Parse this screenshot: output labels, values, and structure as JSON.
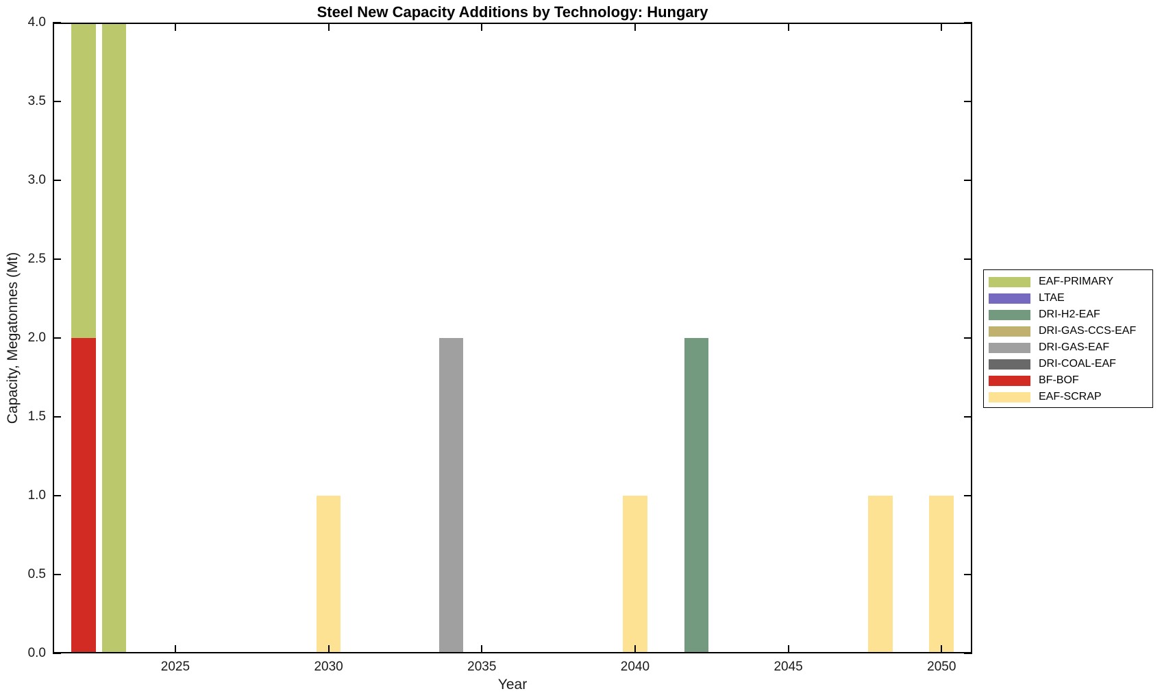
{
  "figure": {
    "title": "Steel New Capacity Additions by Technology: Hungary",
    "x_axis_label": "Year",
    "y_axis_label": "Capacity, Megatonnes (Mt)"
  },
  "chart_data": {
    "type": "bar",
    "stacked": true,
    "title": "Steel New Capacity Additions by Technology: Hungary",
    "xlabel": "Year",
    "ylabel": "Capacity, Megatonnes (Mt)",
    "xlim": [
      2021,
      2051
    ],
    "ylim": [
      0.0,
      4.0
    ],
    "xticks": [
      2025,
      2030,
      2035,
      2040,
      2045,
      2050
    ],
    "yticks": [
      0.0,
      0.5,
      1.0,
      1.5,
      2.0,
      2.5,
      3.0,
      3.5,
      4.0
    ],
    "ytick_labels": [
      "0.0",
      "0.5",
      "1.0",
      "1.5",
      "2.0",
      "2.5",
      "3.0",
      "3.5",
      "4.0"
    ],
    "bar_width_years": 0.8,
    "grid": false,
    "legend_position": "outside-right",
    "series": [
      {
        "name": "EAF-PRIMARY",
        "color": "#bcc86c",
        "points": [
          {
            "x": 2022,
            "y": 2.0
          },
          {
            "x": 2023,
            "y": 4.0
          }
        ]
      },
      {
        "name": "LTAE",
        "color": "#7569c0",
        "points": []
      },
      {
        "name": "DRI-H2-EAF",
        "color": "#739a7e",
        "points": [
          {
            "x": 2042,
            "y": 2.0
          }
        ]
      },
      {
        "name": "DRI-GAS-CCS-EAF",
        "color": "#c0b26e",
        "points": []
      },
      {
        "name": "DRI-GAS-EAF",
        "color": "#a0a0a0",
        "points": [
          {
            "x": 2034,
            "y": 2.0
          }
        ]
      },
      {
        "name": "DRI-COAL-EAF",
        "color": "#696969",
        "points": []
      },
      {
        "name": "BF-BOF",
        "color": "#d22b24",
        "points": [
          {
            "x": 2022,
            "y": 2.0
          }
        ]
      },
      {
        "name": "EAF-SCRAP",
        "color": "#fde294",
        "points": [
          {
            "x": 2030,
            "y": 1.0
          },
          {
            "x": 2040,
            "y": 1.0
          },
          {
            "x": 2048,
            "y": 1.0
          },
          {
            "x": 2050,
            "y": 1.0
          }
        ]
      }
    ],
    "stack_order_bottom_to_top": [
      "EAF-SCRAP",
      "BF-BOF",
      "DRI-COAL-EAF",
      "DRI-GAS-EAF",
      "DRI-GAS-CCS-EAF",
      "DRI-H2-EAF",
      "LTAE",
      "EAF-PRIMARY"
    ],
    "axis_color": "#000000",
    "background_color": "#ffffff"
  }
}
